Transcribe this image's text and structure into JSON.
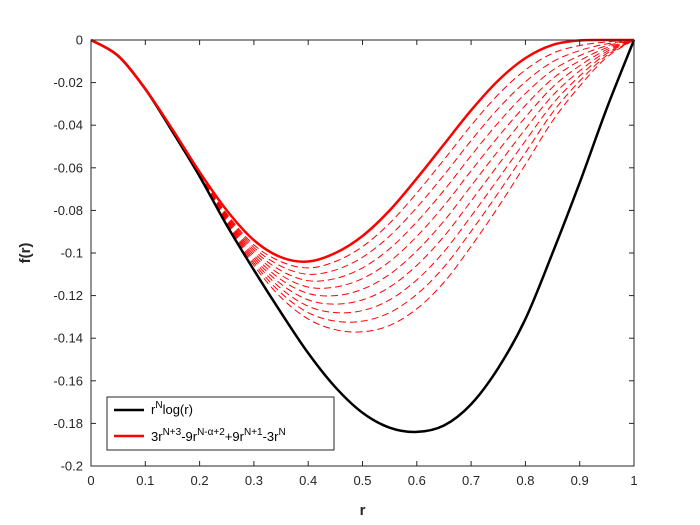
{
  "chart_data": {
    "type": "line",
    "xlabel": "r",
    "ylabel": "f(r)",
    "xlim": [
      0,
      1
    ],
    "ylim": [
      -0.2,
      0
    ],
    "xticks": [
      "0",
      "0.1",
      "0.2",
      "0.3",
      "0.4",
      "0.5",
      "0.6",
      "0.7",
      "0.8",
      "0.9",
      "1"
    ],
    "yticks": [
      "0",
      "-0.02",
      "-0.04",
      "-0.06",
      "-0.08",
      "-0.1",
      "-0.12",
      "-0.14",
      "-0.16",
      "-0.18",
      "-0.2"
    ],
    "grid": false,
    "legend_position": "bottom-left",
    "legend": [
      {
        "text": "r^N log(r)",
        "color": "#000000"
      },
      {
        "text": "3r^(N+3) - 9r^(N-α+2) + 9r^(N+1) - 3r^N",
        "color": "#ff0000"
      }
    ],
    "series": [
      {
        "color": "#000000",
        "style": "solid",
        "x": [
          0,
          0.05,
          0.1,
          0.15,
          0.2,
          0.25,
          0.3,
          0.35,
          0.4,
          0.45,
          0.5,
          0.55,
          0.6,
          0.65,
          0.7,
          0.75,
          0.8,
          0.85,
          0.9,
          0.95,
          1
        ],
        "y": [
          0,
          -0.0075,
          -0.023,
          -0.043,
          -0.064,
          -0.087,
          -0.108,
          -0.128,
          -0.147,
          -0.163,
          -0.175,
          -0.182,
          -0.184,
          -0.181,
          -0.171,
          -0.154,
          -0.131,
          -0.1,
          -0.067,
          -0.032,
          0
        ]
      },
      {
        "color": "#ff0000",
        "style": "solid",
        "x": [
          0,
          0.05,
          0.1,
          0.15,
          0.2,
          0.25,
          0.3,
          0.35,
          0.4,
          0.45,
          0.5,
          0.55,
          0.6,
          0.65,
          0.7,
          0.75,
          0.8,
          0.85,
          0.9,
          0.95,
          1
        ],
        "y": [
          0,
          -0.0074,
          -0.023,
          -0.042,
          -0.062,
          -0.08,
          -0.094,
          -0.102,
          -0.104,
          -0.1,
          -0.092,
          -0.08,
          -0.065,
          -0.049,
          -0.033,
          -0.019,
          -0.0085,
          -0.0023,
          -0.0002,
          0,
          0
        ]
      }
    ],
    "dashed_family": {
      "color": "#ff0000",
      "style": "dashed",
      "count": 9,
      "x": [
        0.2,
        0.25,
        0.3,
        0.35,
        0.4,
        0.45,
        0.5,
        0.55,
        0.6,
        0.65,
        0.7,
        0.75,
        0.8,
        0.85,
        0.9,
        0.95,
        1
      ],
      "upper_y": [
        -0.063,
        -0.081,
        -0.095,
        -0.102,
        -0.104,
        -0.1,
        -0.092,
        -0.08,
        -0.065,
        -0.049,
        -0.033,
        -0.019,
        -0.0085,
        -0.0023,
        -0.0002,
        0,
        0
      ],
      "lower_y": [
        -0.064,
        -0.087,
        -0.107,
        -0.123,
        -0.134,
        -0.14,
        -0.142,
        -0.14,
        -0.133,
        -0.121,
        -0.104,
        -0.085,
        -0.064,
        -0.042,
        -0.024,
        -0.009,
        0
      ]
    }
  }
}
